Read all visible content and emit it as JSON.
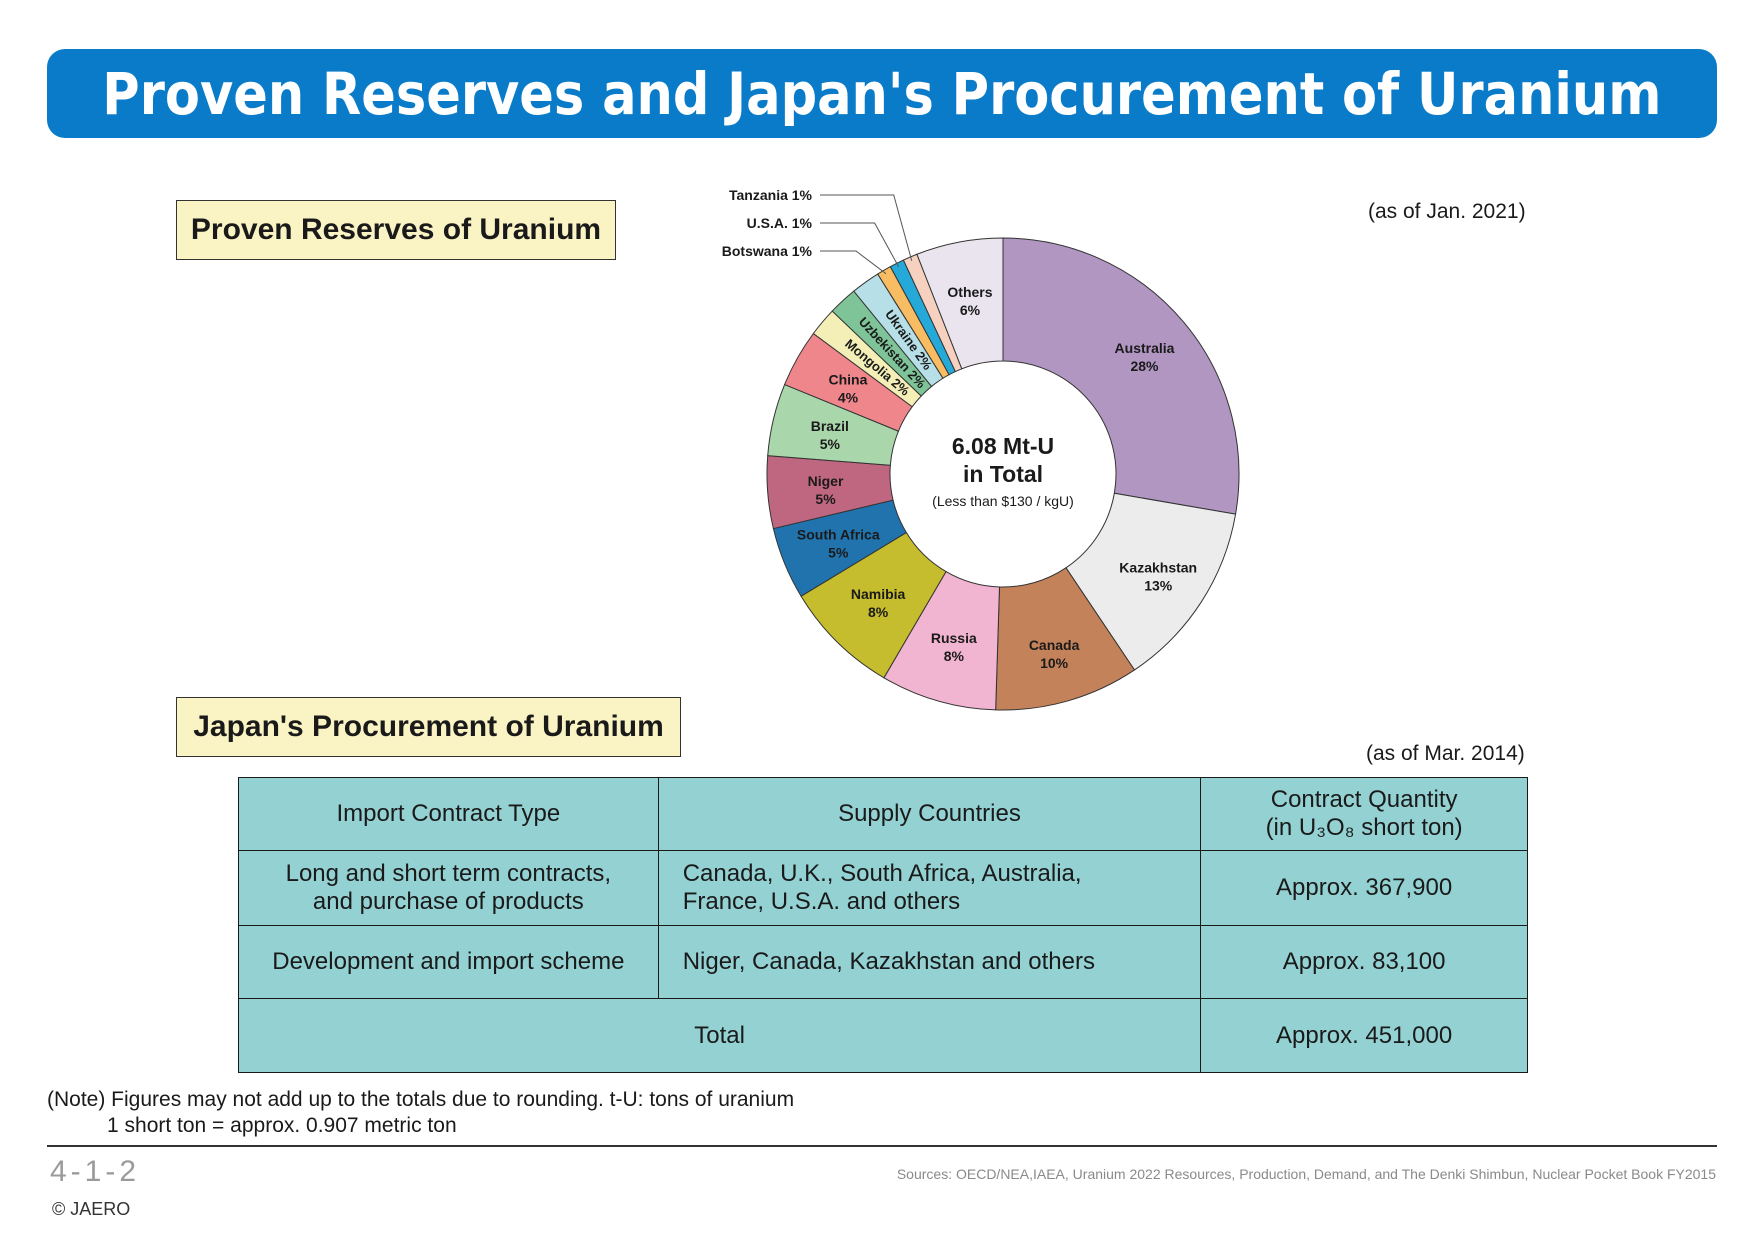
{
  "title": "Proven Reserves and Japan's Procurement of Uranium",
  "sections": {
    "reserves_heading": "Proven Reserves of Uranium",
    "procurement_heading": "Japan's Procurement of Uranium"
  },
  "reserves_as_of": "(as of Jan. 2021)",
  "procurement_as_of": "(as of Mar. 2014)",
  "chart_data": {
    "type": "pie",
    "donut": true,
    "center_text": [
      "6.08 Mt-U",
      "in Total"
    ],
    "center_subtext": "(Less than $130 / kgU)",
    "slices": [
      {
        "label": "Australia",
        "value": 28,
        "display": "28%",
        "color": "#b096c1"
      },
      {
        "label": "Kazakhstan",
        "value": 13,
        "display": "13%",
        "color": "#ececec"
      },
      {
        "label": "Canada",
        "value": 10,
        "display": "10%",
        "color": "#c3825a"
      },
      {
        "label": "Russia",
        "value": 8,
        "display": "8%",
        "color": "#f2b5d1"
      },
      {
        "label": "Namibia",
        "value": 8,
        "display": "8%",
        "color": "#c5bc2e"
      },
      {
        "label": "South Africa",
        "value": 5,
        "display": "5%",
        "color": "#2173ae"
      },
      {
        "label": "Niger",
        "value": 5,
        "display": "5%",
        "color": "#bf6680"
      },
      {
        "label": "Brazil",
        "value": 5,
        "display": "5%",
        "color": "#a9d7ab"
      },
      {
        "label": "China",
        "value": 4,
        "display": "4%",
        "color": "#ef868c"
      },
      {
        "label": "Mongolia",
        "value": 2,
        "display": "2%",
        "color": "#f3efb6"
      },
      {
        "label": "Uzbekistan",
        "value": 2,
        "display": "2%",
        "color": "#7fc499"
      },
      {
        "label": "Ukraine",
        "value": 2,
        "display": "2%",
        "color": "#b6dfe8"
      },
      {
        "label": "Botswana",
        "value": 1,
        "display": "1%",
        "color": "#f8bd63"
      },
      {
        "label": "U.S.A.",
        "value": 1,
        "display": "1%",
        "color": "#25a9d9"
      },
      {
        "label": "Tanzania",
        "value": 1,
        "display": "1%",
        "color": "#f6d1c0"
      },
      {
        "label": "Others",
        "value": 6,
        "display": "6%",
        "color": "#e9e4ed"
      }
    ]
  },
  "table": {
    "headers": {
      "type": "Import Contract Type",
      "countries": "Supply Countries",
      "quantity_line1": "Contract Quantity",
      "quantity_line2": "(in U₃O₈ short ton)"
    },
    "rows": [
      {
        "type_line1": "Long and short term contracts,",
        "type_line2": "and purchase of products",
        "countries_line1": "Canada, U.K., South Africa, Australia,",
        "countries_line2": "France, U.S.A. and others",
        "quantity": "Approx. 367,900"
      },
      {
        "type": "Development and import scheme",
        "countries": "Niger, Canada, Kazakhstan and others",
        "quantity": "Approx. 83,100"
      }
    ],
    "total_label": "Total",
    "total_quantity": "Approx. 451,000"
  },
  "note_line1": "(Note) Figures may not add up to the totals due to rounding. t-U: tons of uranium",
  "note_line2": "1 short ton = approx. 0.907 metric ton",
  "page_number": "4-1-2",
  "sources": "Sources: OECD/NEA,IAEA, Uranium 2022 Resources, Production, Demand, and The Denki Shimbun, Nuclear Pocket Book FY2015",
  "copyright": "© JAERO"
}
